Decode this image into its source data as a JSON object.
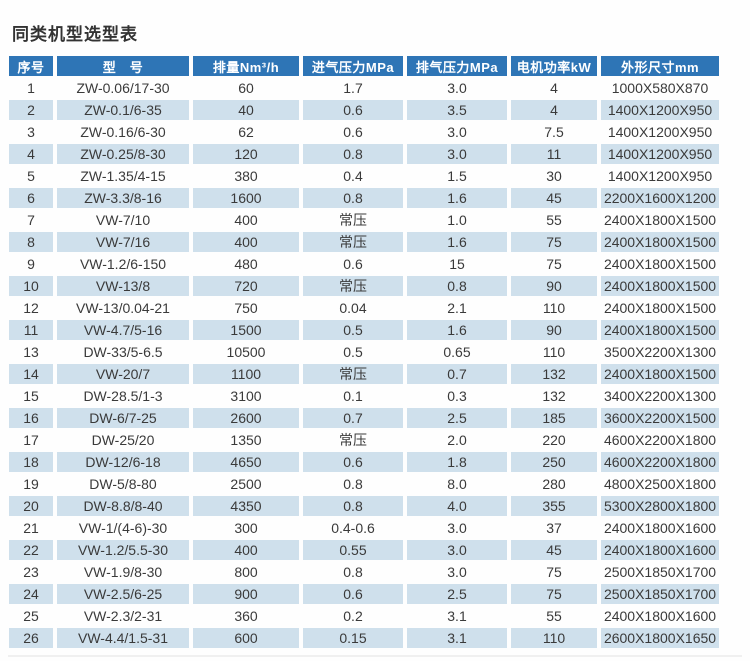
{
  "title": "同类机型选型表",
  "colors": {
    "header_bg": "#2e75b6",
    "header_text": "#ffffff",
    "row_alt_bg": "#cfe0ec",
    "body_text": "#3a3a3a"
  },
  "table": {
    "col_keys": [
      "index",
      "model",
      "displacement",
      "intake-pressure",
      "exhaust-pressure",
      "motor-power",
      "dimensions"
    ],
    "headers": [
      "序号",
      "型　号",
      "排量Nm³/h",
      "进气压力MPa",
      "排气压力MPa",
      "电机功率kW",
      "外形尺寸mm"
    ],
    "rows": [
      [
        "1",
        "ZW-0.06/17-30",
        "60",
        "1.7",
        "3.0",
        "4",
        "1000X580X870"
      ],
      [
        "2",
        "ZW-0.1/6-35",
        "40",
        "0.6",
        "3.5",
        "4",
        "1400X1200X950"
      ],
      [
        "3",
        "ZW-0.16/6-30",
        "62",
        "0.6",
        "3.0",
        "7.5",
        "1400X1200X950"
      ],
      [
        "4",
        "ZW-0.25/8-30",
        "120",
        "0.8",
        "3.0",
        "11",
        "1400X1200X950"
      ],
      [
        "5",
        "ZW-1.35/4-15",
        "380",
        "0.4",
        "1.5",
        "30",
        "1400X1200X950"
      ],
      [
        "6",
        "ZW-3.3/8-16",
        "1600",
        "0.8",
        "1.6",
        "45",
        "2200X1600X1200"
      ],
      [
        "7",
        "VW-7/10",
        "400",
        "常压",
        "1.0",
        "55",
        "2400X1800X1500"
      ],
      [
        "8",
        "VW-7/16",
        "400",
        "常压",
        "1.6",
        "75",
        "2400X1800X1500"
      ],
      [
        "9",
        "VW-1.2/6-150",
        "480",
        "0.6",
        "15",
        "75",
        "2400X1800X1500"
      ],
      [
        "10",
        "VW-13/8",
        "720",
        "常压",
        "0.8",
        "90",
        "2400X1800X1500"
      ],
      [
        "12",
        "VW-13/0.04-21",
        "750",
        "0.04",
        "2.1",
        "110",
        "2400X1800X1500"
      ],
      [
        "11",
        "VW-4.7/5-16",
        "1500",
        "0.5",
        "1.6",
        "90",
        "2400X1800X1500"
      ],
      [
        "13",
        "DW-33/5-6.5",
        "10500",
        "0.5",
        "0.65",
        "110",
        "3500X2200X1300"
      ],
      [
        "14",
        "VW-20/7",
        "1100",
        "常压",
        "0.7",
        "132",
        "2400X1800X1500"
      ],
      [
        "15",
        "DW-28.5/1-3",
        "3100",
        "0.1",
        "0.3",
        "132",
        "3400X2200X1300"
      ],
      [
        "16",
        "DW-6/7-25",
        "2600",
        "0.7",
        "2.5",
        "185",
        "3600X2200X1500"
      ],
      [
        "17",
        "DW-25/20",
        "1350",
        "常压",
        "2.0",
        "220",
        "4600X2200X1800"
      ],
      [
        "18",
        "DW-12/6-18",
        "4650",
        "0.6",
        "1.8",
        "250",
        "4600X2200X1800"
      ],
      [
        "19",
        "DW-5/8-80",
        "2500",
        "0.8",
        "8.0",
        "280",
        "4800X2500X1800"
      ],
      [
        "20",
        "DW-8.8/8-40",
        "4350",
        "0.8",
        "4.0",
        "355",
        "5300X2800X1800"
      ],
      [
        "21",
        "VW-1/(4-6)-30",
        "300",
        "0.4-0.6",
        "3.0",
        "37",
        "2400X1800X1600"
      ],
      [
        "22",
        "VW-1.2/5.5-30",
        "400",
        "0.55",
        "3.0",
        "45",
        "2400X1800X1600"
      ],
      [
        "23",
        "VW-1.9/8-30",
        "800",
        "0.8",
        "3.0",
        "75",
        "2500X1850X1700"
      ],
      [
        "24",
        "VW-2.5/6-25",
        "900",
        "0.6",
        "2.5",
        "75",
        "2500X1850X1700"
      ],
      [
        "25",
        "VW-2.3/2-31",
        "360",
        "0.2",
        "3.1",
        "55",
        "2400X1800X1600"
      ],
      [
        "26",
        "VW-4.4/1.5-31",
        "600",
        "0.15",
        "3.1",
        "110",
        "2600X1800X1650"
      ]
    ]
  }
}
